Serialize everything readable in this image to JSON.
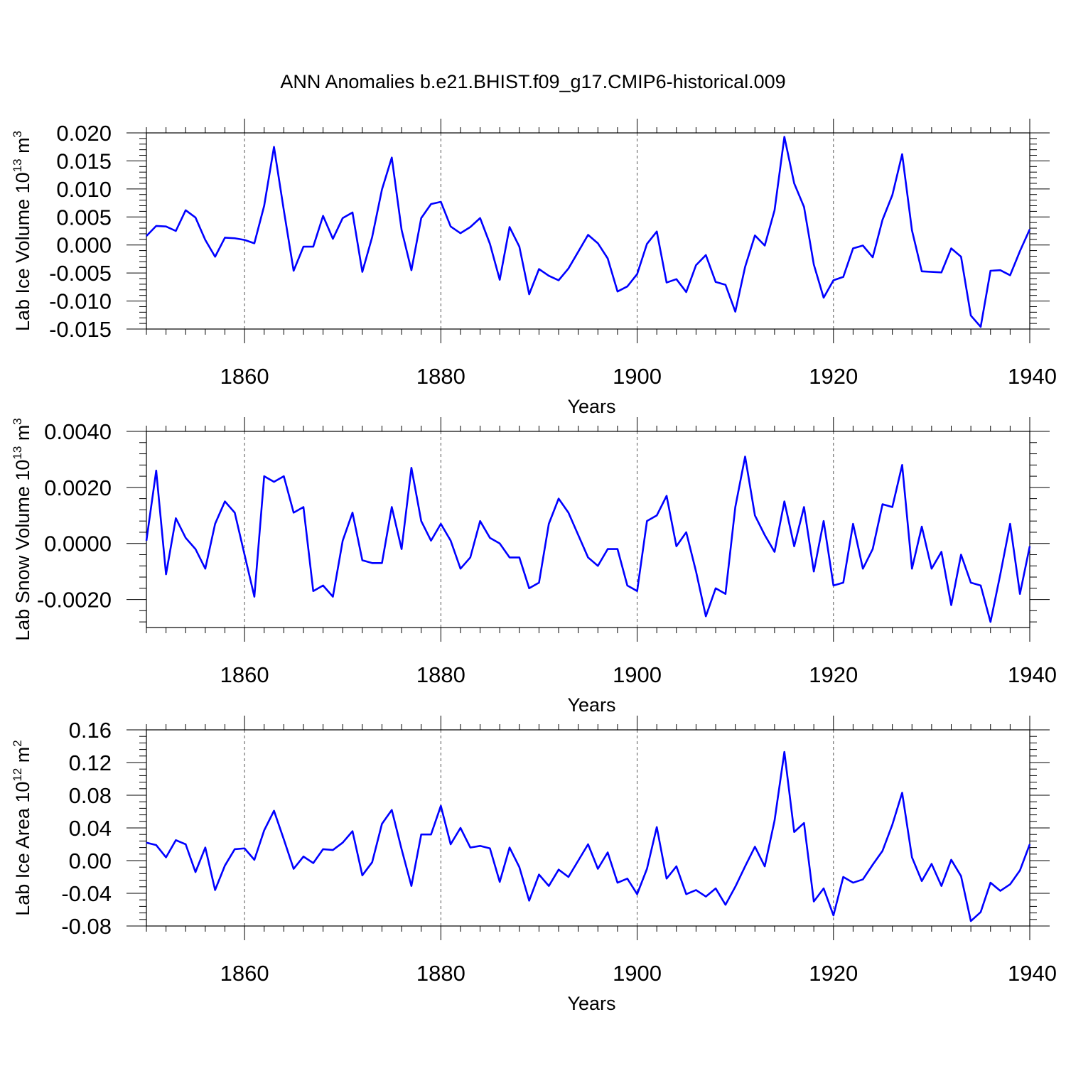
{
  "title": "ANN Anomalies b.e21.BHIST.f09_g17.CMIP6-historical.009",
  "line_color": "#0000ff",
  "chart_data": [
    {
      "type": "line",
      "ylabel": "Lab Ice Volume 10",
      "ylabel_exp": "13",
      "ylabel_unit": "m",
      "ylabel_unit_exp": "3",
      "xlabel": "Years",
      "xlim": [
        1850,
        1940
      ],
      "ylim": [
        -0.015,
        0.02
      ],
      "x_ticks": [
        1860,
        1880,
        1900,
        1920,
        1940
      ],
      "x_tick_labels": [
        "1860",
        "1880",
        "1900",
        "1920",
        "1940"
      ],
      "y_ticks": [
        -0.015,
        -0.01,
        -0.005,
        0.0,
        0.005,
        0.01,
        0.015,
        0.02
      ],
      "y_tick_labels": [
        "-0.015",
        "-0.010",
        "-0.005",
        "0.000",
        "0.005",
        "0.010",
        "0.015",
        "0.020"
      ],
      "x_start": 1850,
      "values": [
        0.0016,
        0.0034,
        0.0033,
        0.0025,
        0.0062,
        0.0049,
        0.0009,
        -0.0021,
        0.0013,
        0.0012,
        0.0009,
        0.0003,
        0.007,
        0.0175,
        0.0062,
        -0.0046,
        -0.0003,
        -0.0003,
        0.0052,
        0.0011,
        0.0048,
        0.0058,
        -0.0048,
        0.0014,
        0.0099,
        0.0156,
        0.0027,
        -0.0045,
        0.0048,
        0.0073,
        0.0077,
        0.0033,
        0.0021,
        0.0032,
        0.0048,
        0.0002,
        -0.0062,
        0.0032,
        -0.0003,
        -0.0088,
        -0.0043,
        -0.0055,
        -0.0063,
        -0.0042,
        -0.0012,
        0.0018,
        0.0003,
        -0.0024,
        -0.0083,
        -0.0074,
        -0.0052,
        0.0002,
        0.0024,
        -0.0067,
        -0.0061,
        -0.0084,
        -0.0036,
        -0.0018,
        -0.0066,
        -0.0071,
        -0.0119,
        -0.0039,
        0.0017,
        -0.0001,
        0.0062,
        0.0193,
        0.011,
        0.0068,
        -0.0035,
        -0.0094,
        -0.0063,
        -0.0057,
        -0.0006,
        -0.0001,
        -0.0022,
        0.0045,
        0.0089,
        0.0162,
        0.0026,
        -0.0047,
        -0.0048,
        -0.0049,
        -0.0006,
        -0.0021,
        -0.0126,
        -0.0146,
        -0.0046,
        -0.0045,
        -0.0054,
        -0.0011,
        0.0028
      ]
    },
    {
      "type": "line",
      "ylabel": "Lab Snow Volume 10",
      "ylabel_exp": "13",
      "ylabel_unit": "m",
      "ylabel_unit_exp": "3",
      "xlabel": "Years",
      "xlim": [
        1850,
        1940
      ],
      "ylim": [
        -0.003,
        0.004
      ],
      "x_ticks": [
        1860,
        1880,
        1900,
        1920,
        1940
      ],
      "x_tick_labels": [
        "1860",
        "1880",
        "1900",
        "1920",
        "1940"
      ],
      "y_ticks": [
        -0.002,
        0.0,
        0.002,
        0.004
      ],
      "y_tick_labels": [
        "-0.0020",
        "0.0000",
        "0.0020",
        "0.0040"
      ],
      "x_start": 1850,
      "values": [
        0.0001,
        0.0026,
        -0.0011,
        0.0009,
        0.0002,
        -0.0002,
        -0.0009,
        0.0007,
        0.0015,
        0.0011,
        -0.0004,
        -0.0019,
        0.0024,
        0.0022,
        0.0024,
        0.0011,
        0.0013,
        -0.0017,
        -0.0015,
        -0.0019,
        0.0001,
        0.0011,
        -0.0006,
        -0.0007,
        -0.0007,
        0.0013,
        -0.0002,
        0.0027,
        0.0008,
        0.0001,
        0.0007,
        0.0001,
        -0.0009,
        -0.0005,
        0.0008,
        0.0002,
        0.0,
        -0.0005,
        -0.0005,
        -0.0016,
        -0.0014,
        0.0007,
        0.0016,
        0.0011,
        0.0003,
        -0.0005,
        -0.0008,
        -0.0002,
        -0.0002,
        -0.0015,
        -0.0017,
        0.0008,
        0.001,
        0.0017,
        -0.0001,
        0.0004,
        -0.001,
        -0.0026,
        -0.0016,
        -0.0018,
        0.0013,
        0.0031,
        0.001,
        0.0003,
        -0.0003,
        0.0015,
        -0.0001,
        0.0013,
        -0.001,
        0.0008,
        -0.0015,
        -0.0014,
        0.0007,
        -0.0009,
        -0.0002,
        0.0014,
        0.0013,
        0.0028,
        -0.0009,
        0.0006,
        -0.0009,
        -0.0003,
        -0.0022,
        -0.0004,
        -0.0014,
        -0.0015,
        -0.0028,
        -0.0011,
        0.0007,
        -0.0018,
        -0.0001
      ]
    },
    {
      "type": "line",
      "ylabel": "Lab Ice Area 10",
      "ylabel_exp": "12",
      "ylabel_unit": "m",
      "ylabel_unit_exp": "2",
      "xlabel": "Years",
      "xlim": [
        1850,
        1940
      ],
      "ylim": [
        -0.08,
        0.16
      ],
      "x_ticks": [
        1860,
        1880,
        1900,
        1920,
        1940
      ],
      "x_tick_labels": [
        "1860",
        "1880",
        "1900",
        "1920",
        "1940"
      ],
      "y_ticks": [
        -0.08,
        -0.04,
        0.0,
        0.04,
        0.08,
        0.12,
        0.16
      ],
      "y_tick_labels": [
        "-0.08",
        "-0.04",
        "0.00",
        "0.04",
        "0.08",
        "0.12",
        "0.16"
      ],
      "x_start": 1850,
      "values": [
        0.022,
        0.019,
        0.004,
        0.025,
        0.02,
        -0.014,
        0.016,
        -0.036,
        -0.006,
        0.014,
        0.015,
        0.001,
        0.037,
        0.061,
        0.026,
        -0.01,
        0.005,
        -0.003,
        0.014,
        0.013,
        0.022,
        0.036,
        -0.018,
        -0.002,
        0.045,
        0.062,
        0.014,
        -0.031,
        0.032,
        0.032,
        0.067,
        0.02,
        0.04,
        0.016,
        0.018,
        0.015,
        -0.026,
        0.016,
        -0.008,
        -0.049,
        -0.017,
        -0.031,
        -0.011,
        -0.02,
        0.0,
        0.02,
        -0.01,
        0.01,
        -0.027,
        -0.022,
        -0.041,
        -0.01,
        0.041,
        -0.022,
        -0.007,
        -0.041,
        -0.036,
        -0.044,
        -0.034,
        -0.054,
        -0.032,
        -0.007,
        0.017,
        -0.007,
        0.049,
        0.133,
        0.035,
        0.046,
        -0.05,
        -0.034,
        -0.067,
        -0.02,
        -0.027,
        -0.023,
        -0.005,
        0.012,
        0.044,
        0.083,
        0.004,
        -0.025,
        -0.004,
        -0.031,
        0.001,
        -0.019,
        -0.074,
        -0.063,
        -0.027,
        -0.037,
        -0.029,
        -0.012,
        0.02
      ]
    }
  ]
}
